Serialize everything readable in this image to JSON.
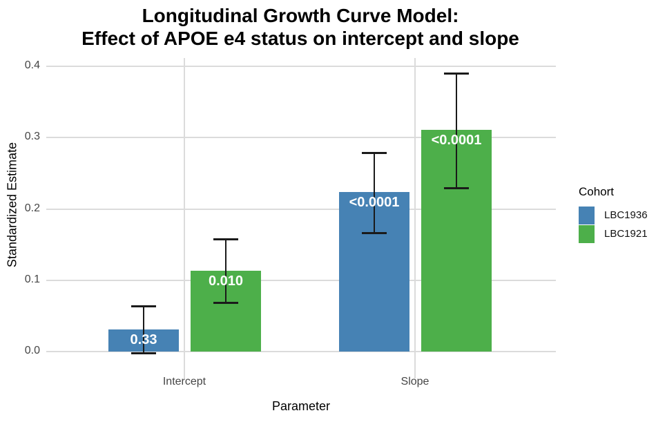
{
  "title": {
    "line1": "Longitudinal Growth Curve Model:",
    "line2": "Effect of APOE e4 status on intercept and slope"
  },
  "chart_data": {
    "type": "bar",
    "title": "Longitudinal Growth Curve Model: Effect of APOE e4 status on intercept and slope",
    "categories": [
      "Intercept",
      "Slope"
    ],
    "series": [
      {
        "name": "LBC1936",
        "color": "#4682B4",
        "values": [
          0.031,
          0.224
        ],
        "ci_lower": [
          -0.002,
          0.167
        ],
        "ci_upper": [
          0.064,
          0.279
        ],
        "p_labels": [
          "0.33",
          "<0.0001"
        ]
      },
      {
        "name": "LBC1921",
        "color": "#4DAF4A",
        "values": [
          0.113,
          0.311
        ],
        "ci_lower": [
          0.069,
          0.23
        ],
        "ci_upper": [
          0.158,
          0.39
        ],
        "p_labels": [
          "0.010",
          "<0.0001"
        ]
      }
    ],
    "xlabel": "Parameter",
    "ylabel": "Standardized Estimate",
    "ylim": [
      0,
      0.4
    ],
    "yticks": [
      "0.0",
      "0.1",
      "0.2",
      "0.3",
      "0.4"
    ],
    "grid": true,
    "error_bars": true,
    "legend": {
      "title": "Cohort",
      "position": "right"
    },
    "grid_color": "#dbdbdb",
    "label_color": "#ffffff"
  }
}
